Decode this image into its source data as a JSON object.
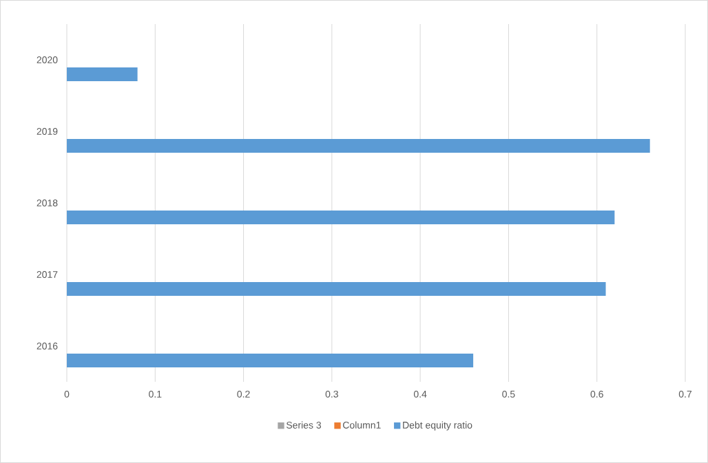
{
  "chart_data": {
    "type": "bar",
    "orientation": "horizontal",
    "categories": [
      "2020",
      "2019",
      "2018",
      "2017",
      "2016"
    ],
    "series": [
      {
        "name": "Series 3",
        "color": "#a5a5a5",
        "values": [
          null,
          null,
          null,
          null,
          null
        ]
      },
      {
        "name": "Column1",
        "color": "#ed7d31",
        "values": [
          null,
          null,
          null,
          null,
          null
        ]
      },
      {
        "name": "Debt equity ratio",
        "color": "#5b9bd5",
        "values": [
          0.08,
          0.66,
          0.62,
          0.61,
          0.46
        ]
      }
    ],
    "xlim": [
      0,
      0.7
    ],
    "xticks": [
      0,
      0.1,
      0.2,
      0.3,
      0.4,
      0.5,
      0.6,
      0.7
    ],
    "grid": "x",
    "legend": "bottom"
  }
}
